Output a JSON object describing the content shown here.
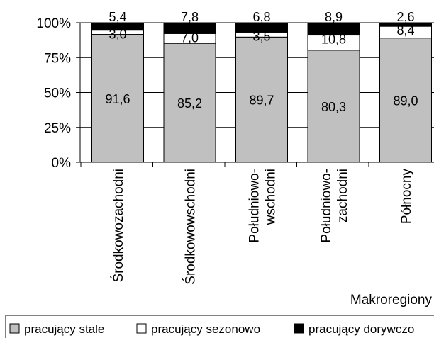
{
  "chart_data": {
    "type": "bar",
    "stacked": true,
    "percent_stacked": true,
    "title": "",
    "xlabel": "Makroregiony",
    "ylabel": "",
    "ylim": [
      0,
      100
    ],
    "yticks": [
      "0%",
      "25%",
      "50%",
      "75%",
      "100%"
    ],
    "grid": true,
    "legend_position": "bottom",
    "categories": [
      [
        "Środkowozachodni"
      ],
      [
        "Środkowowschodni"
      ],
      [
        "Południowo-",
        "wschodni"
      ],
      [
        "Południowo-",
        "zachodni"
      ],
      [
        "Północny"
      ]
    ],
    "series": [
      {
        "name": "pracujący stale",
        "color": "#c0c0c0",
        "values": [
          91.6,
          85.2,
          89.7,
          80.3,
          89.0
        ],
        "labels": [
          "91,6",
          "85,2",
          "89,7",
          "80,3",
          "89,0"
        ]
      },
      {
        "name": "pracujący sezonowo",
        "color": "#ffffff",
        "values": [
          3.0,
          7.0,
          3.5,
          10.8,
          8.4
        ],
        "labels": [
          "3,0",
          "7,0",
          "3,5",
          "10,8",
          "8,4"
        ]
      },
      {
        "name": "pracujący dorywczo",
        "color": "#000000",
        "values": [
          5.4,
          7.8,
          6.8,
          8.9,
          2.6
        ],
        "labels": [
          "5,4",
          "7,8",
          "6,8",
          "8,9",
          "2,6"
        ]
      }
    ]
  }
}
